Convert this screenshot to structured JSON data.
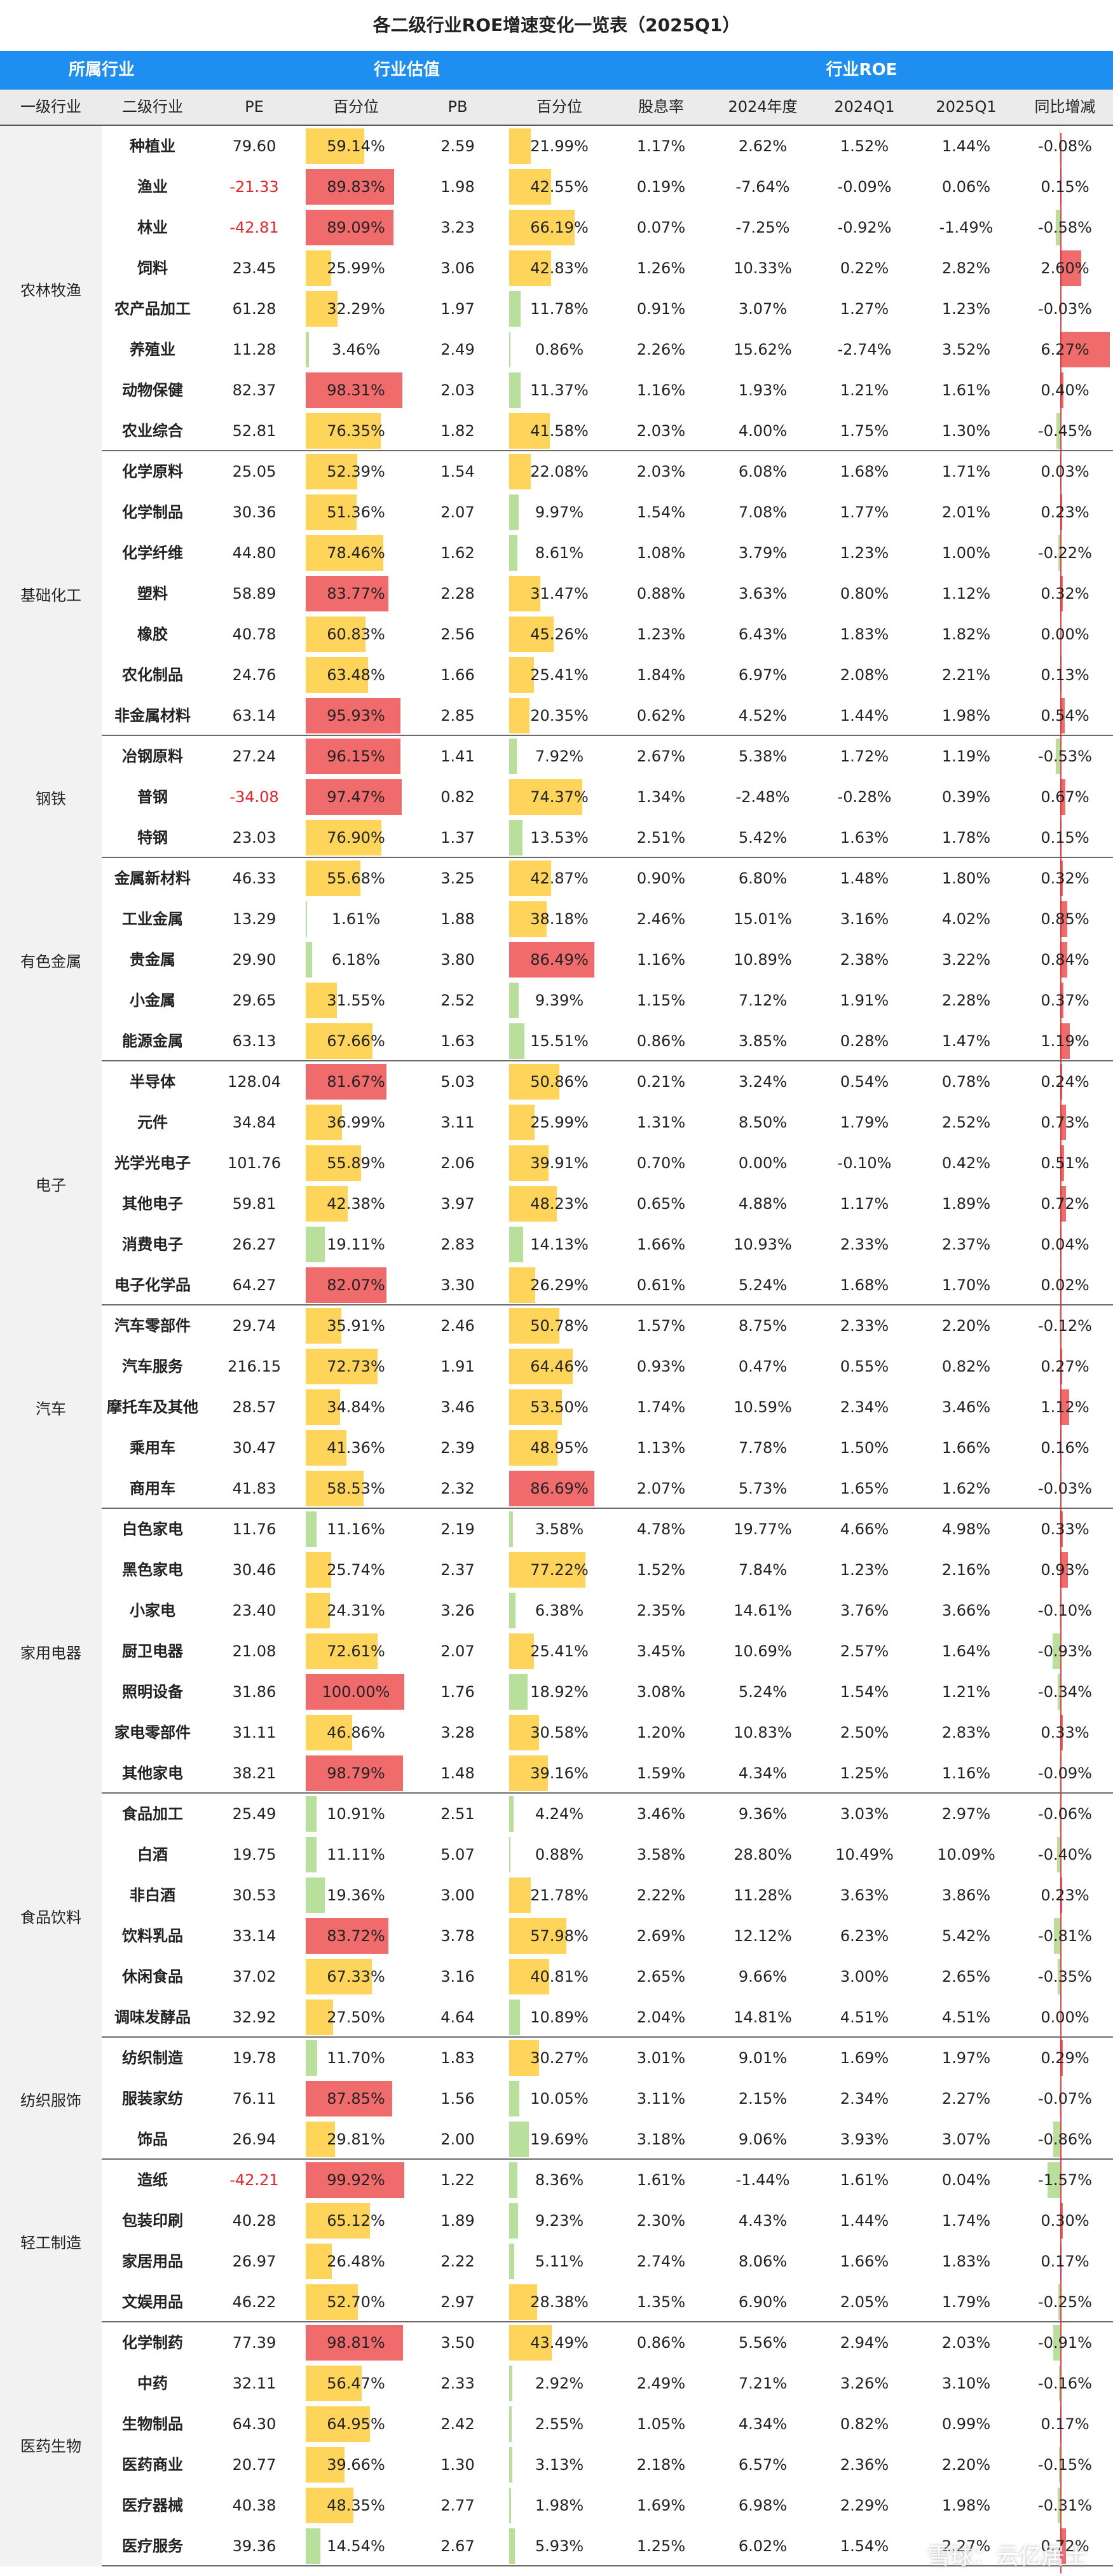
{
  "title": "各二级行业ROE增速变化一览表（2025Q1）",
  "header_groups": [
    "所属行业",
    "行业估值",
    "行业ROE"
  ],
  "columns": [
    "一级行业",
    "二级行业",
    "PE",
    "百分位",
    "PB",
    "百分位",
    "股息率",
    "2024年度",
    "2024Q1",
    "2025Q1",
    "同比增减"
  ],
  "watermark": "雪球：云亿居士",
  "colors": {
    "header_blue": "#1f8ef1",
    "bar_red": "#f06b6c",
    "bar_yellow": "#ffd45b",
    "bar_green": "#b8df9c",
    "negative_text": "#e8242b"
  },
  "groups": [
    {
      "l1": "农林牧渔",
      "rows": [
        {
          "l2": "种植业",
          "pe": "79.60",
          "pe_pct": "59.14%",
          "pb": "2.59",
          "pb_pct": "21.99%",
          "div": "1.17%",
          "y2024": "2.62%",
          "q2024": "1.52%",
          "q2025": "1.44%",
          "yoy": "-0.08%"
        },
        {
          "l2": "渔业",
          "pe": "-21.33",
          "pe_pct": "89.83%",
          "pb": "1.98",
          "pb_pct": "42.55%",
          "div": "0.19%",
          "y2024": "-7.64%",
          "q2024": "-0.09%",
          "q2025": "0.06%",
          "yoy": "0.15%"
        },
        {
          "l2": "林业",
          "pe": "-42.81",
          "pe_pct": "89.09%",
          "pb": "3.23",
          "pb_pct": "66.19%",
          "div": "0.07%",
          "y2024": "-7.25%",
          "q2024": "-0.92%",
          "q2025": "-1.49%",
          "yoy": "-0.58%"
        },
        {
          "l2": "饲料",
          "pe": "23.45",
          "pe_pct": "25.99%",
          "pb": "3.06",
          "pb_pct": "42.83%",
          "div": "1.26%",
          "y2024": "10.33%",
          "q2024": "0.22%",
          "q2025": "2.82%",
          "yoy": "2.60%"
        },
        {
          "l2": "农产品加工",
          "pe": "61.28",
          "pe_pct": "32.29%",
          "pb": "1.97",
          "pb_pct": "11.78%",
          "div": "0.91%",
          "y2024": "3.07%",
          "q2024": "1.27%",
          "q2025": "1.23%",
          "yoy": "-0.03%"
        },
        {
          "l2": "养殖业",
          "pe": "11.28",
          "pe_pct": "3.46%",
          "pb": "2.49",
          "pb_pct": "0.86%",
          "div": "2.26%",
          "y2024": "15.62%",
          "q2024": "-2.74%",
          "q2025": "3.52%",
          "yoy": "6.27%"
        },
        {
          "l2": "动物保健",
          "pe": "82.37",
          "pe_pct": "98.31%",
          "pb": "2.03",
          "pb_pct": "11.37%",
          "div": "1.16%",
          "y2024": "1.93%",
          "q2024": "1.21%",
          "q2025": "1.61%",
          "yoy": "0.40%"
        },
        {
          "l2": "农业综合",
          "pe": "52.81",
          "pe_pct": "76.35%",
          "pb": "1.82",
          "pb_pct": "41.58%",
          "div": "2.03%",
          "y2024": "4.00%",
          "q2024": "1.75%",
          "q2025": "1.30%",
          "yoy": "-0.45%"
        }
      ]
    },
    {
      "l1": "基础化工",
      "rows": [
        {
          "l2": "化学原料",
          "pe": "25.05",
          "pe_pct": "52.39%",
          "pb": "1.54",
          "pb_pct": "22.08%",
          "div": "2.03%",
          "y2024": "6.08%",
          "q2024": "1.68%",
          "q2025": "1.71%",
          "yoy": "0.03%"
        },
        {
          "l2": "化学制品",
          "pe": "30.36",
          "pe_pct": "51.36%",
          "pb": "2.07",
          "pb_pct": "9.97%",
          "div": "1.54%",
          "y2024": "7.08%",
          "q2024": "1.77%",
          "q2025": "2.01%",
          "yoy": "0.23%"
        },
        {
          "l2": "化学纤维",
          "pe": "44.80",
          "pe_pct": "78.46%",
          "pb": "1.62",
          "pb_pct": "8.61%",
          "div": "1.08%",
          "y2024": "3.79%",
          "q2024": "1.23%",
          "q2025": "1.00%",
          "yoy": "-0.22%"
        },
        {
          "l2": "塑料",
          "pe": "58.89",
          "pe_pct": "83.77%",
          "pb": "2.28",
          "pb_pct": "31.47%",
          "div": "0.88%",
          "y2024": "3.63%",
          "q2024": "0.80%",
          "q2025": "1.12%",
          "yoy": "0.32%"
        },
        {
          "l2": "橡胶",
          "pe": "40.78",
          "pe_pct": "60.83%",
          "pb": "2.56",
          "pb_pct": "45.26%",
          "div": "1.23%",
          "y2024": "6.43%",
          "q2024": "1.83%",
          "q2025": "1.82%",
          "yoy": "0.00%"
        },
        {
          "l2": "农化制品",
          "pe": "24.76",
          "pe_pct": "63.48%",
          "pb": "1.66",
          "pb_pct": "25.41%",
          "div": "1.84%",
          "y2024": "6.97%",
          "q2024": "2.08%",
          "q2025": "2.21%",
          "yoy": "0.13%"
        },
        {
          "l2": "非金属材料",
          "pe": "63.14",
          "pe_pct": "95.93%",
          "pb": "2.85",
          "pb_pct": "20.35%",
          "div": "0.62%",
          "y2024": "4.52%",
          "q2024": "1.44%",
          "q2025": "1.98%",
          "yoy": "0.54%"
        }
      ]
    },
    {
      "l1": "钢铁",
      "rows": [
        {
          "l2": "冶钢原料",
          "pe": "27.24",
          "pe_pct": "96.15%",
          "pb": "1.41",
          "pb_pct": "7.92%",
          "div": "2.67%",
          "y2024": "5.38%",
          "q2024": "1.72%",
          "q2025": "1.19%",
          "yoy": "-0.53%"
        },
        {
          "l2": "普钢",
          "pe": "-34.08",
          "pe_pct": "97.47%",
          "pb": "0.82",
          "pb_pct": "74.37%",
          "div": "1.34%",
          "y2024": "-2.48%",
          "q2024": "-0.28%",
          "q2025": "0.39%",
          "yoy": "0.67%"
        },
        {
          "l2": "特钢",
          "pe": "23.03",
          "pe_pct": "76.90%",
          "pb": "1.37",
          "pb_pct": "13.53%",
          "div": "2.51%",
          "y2024": "5.42%",
          "q2024": "1.63%",
          "q2025": "1.78%",
          "yoy": "0.15%"
        }
      ]
    },
    {
      "l1": "有色金属",
      "rows": [
        {
          "l2": "金属新材料",
          "pe": "46.33",
          "pe_pct": "55.68%",
          "pb": "3.25",
          "pb_pct": "42.87%",
          "div": "0.90%",
          "y2024": "6.80%",
          "q2024": "1.48%",
          "q2025": "1.80%",
          "yoy": "0.32%"
        },
        {
          "l2": "工业金属",
          "pe": "13.29",
          "pe_pct": "1.61%",
          "pb": "1.88",
          "pb_pct": "38.18%",
          "div": "2.46%",
          "y2024": "15.01%",
          "q2024": "3.16%",
          "q2025": "4.02%",
          "yoy": "0.85%"
        },
        {
          "l2": "贵金属",
          "pe": "29.90",
          "pe_pct": "6.18%",
          "pb": "3.80",
          "pb_pct": "86.49%",
          "div": "1.16%",
          "y2024": "10.89%",
          "q2024": "2.38%",
          "q2025": "3.22%",
          "yoy": "0.84%"
        },
        {
          "l2": "小金属",
          "pe": "29.65",
          "pe_pct": "31.55%",
          "pb": "2.52",
          "pb_pct": "9.39%",
          "div": "1.15%",
          "y2024": "7.12%",
          "q2024": "1.91%",
          "q2025": "2.28%",
          "yoy": "0.37%"
        },
        {
          "l2": "能源金属",
          "pe": "63.13",
          "pe_pct": "67.66%",
          "pb": "1.63",
          "pb_pct": "15.51%",
          "div": "0.86%",
          "y2024": "3.85%",
          "q2024": "0.28%",
          "q2025": "1.47%",
          "yoy": "1.19%"
        }
      ]
    },
    {
      "l1": "电子",
      "rows": [
        {
          "l2": "半导体",
          "pe": "128.04",
          "pe_pct": "81.67%",
          "pb": "5.03",
          "pb_pct": "50.86%",
          "div": "0.21%",
          "y2024": "3.24%",
          "q2024": "0.54%",
          "q2025": "0.78%",
          "yoy": "0.24%"
        },
        {
          "l2": "元件",
          "pe": "34.84",
          "pe_pct": "36.99%",
          "pb": "3.11",
          "pb_pct": "25.99%",
          "div": "1.31%",
          "y2024": "8.50%",
          "q2024": "1.79%",
          "q2025": "2.52%",
          "yoy": "0.73%"
        },
        {
          "l2": "光学光电子",
          "pe": "101.76",
          "pe_pct": "55.89%",
          "pb": "2.06",
          "pb_pct": "39.91%",
          "div": "0.70%",
          "y2024": "0.00%",
          "q2024": "-0.10%",
          "q2025": "0.42%",
          "yoy": "0.51%"
        },
        {
          "l2": "其他电子",
          "pe": "59.81",
          "pe_pct": "42.38%",
          "pb": "3.97",
          "pb_pct": "48.23%",
          "div": "0.65%",
          "y2024": "4.88%",
          "q2024": "1.17%",
          "q2025": "1.89%",
          "yoy": "0.72%"
        },
        {
          "l2": "消费电子",
          "pe": "26.27",
          "pe_pct": "19.11%",
          "pb": "2.83",
          "pb_pct": "14.13%",
          "div": "1.66%",
          "y2024": "10.93%",
          "q2024": "2.33%",
          "q2025": "2.37%",
          "yoy": "0.04%"
        },
        {
          "l2": "电子化学品",
          "pe": "64.27",
          "pe_pct": "82.07%",
          "pb": "3.30",
          "pb_pct": "26.29%",
          "div": "0.61%",
          "y2024": "5.24%",
          "q2024": "1.68%",
          "q2025": "1.70%",
          "yoy": "0.02%"
        }
      ]
    },
    {
      "l1": "汽车",
      "rows": [
        {
          "l2": "汽车零部件",
          "pe": "29.74",
          "pe_pct": "35.91%",
          "pb": "2.46",
          "pb_pct": "50.78%",
          "div": "1.57%",
          "y2024": "8.75%",
          "q2024": "2.33%",
          "q2025": "2.20%",
          "yoy": "-0.12%"
        },
        {
          "l2": "汽车服务",
          "pe": "216.15",
          "pe_pct": "72.73%",
          "pb": "1.91",
          "pb_pct": "64.46%",
          "div": "0.93%",
          "y2024": "0.47%",
          "q2024": "0.55%",
          "q2025": "0.82%",
          "yoy": "0.27%"
        },
        {
          "l2": "摩托车及其他",
          "pe": "28.57",
          "pe_pct": "34.84%",
          "pb": "3.46",
          "pb_pct": "53.50%",
          "div": "1.74%",
          "y2024": "10.59%",
          "q2024": "2.34%",
          "q2025": "3.46%",
          "yoy": "1.12%"
        },
        {
          "l2": "乘用车",
          "pe": "30.47",
          "pe_pct": "41.36%",
          "pb": "2.39",
          "pb_pct": "48.95%",
          "div": "1.13%",
          "y2024": "7.78%",
          "q2024": "1.50%",
          "q2025": "1.66%",
          "yoy": "0.16%"
        },
        {
          "l2": "商用车",
          "pe": "41.83",
          "pe_pct": "58.53%",
          "pb": "2.32",
          "pb_pct": "86.69%",
          "div": "2.07%",
          "y2024": "5.73%",
          "q2024": "1.65%",
          "q2025": "1.62%",
          "yoy": "-0.03%"
        }
      ]
    },
    {
      "l1": "家用电器",
      "rows": [
        {
          "l2": "白色家电",
          "pe": "11.76",
          "pe_pct": "11.16%",
          "pb": "2.19",
          "pb_pct": "3.58%",
          "div": "4.78%",
          "y2024": "19.77%",
          "q2024": "4.66%",
          "q2025": "4.98%",
          "yoy": "0.33%"
        },
        {
          "l2": "黑色家电",
          "pe": "30.46",
          "pe_pct": "25.74%",
          "pb": "2.37",
          "pb_pct": "77.22%",
          "div": "1.52%",
          "y2024": "7.84%",
          "q2024": "1.23%",
          "q2025": "2.16%",
          "yoy": "0.93%"
        },
        {
          "l2": "小家电",
          "pe": "23.40",
          "pe_pct": "24.31%",
          "pb": "3.26",
          "pb_pct": "6.38%",
          "div": "2.35%",
          "y2024": "14.61%",
          "q2024": "3.76%",
          "q2025": "3.66%",
          "yoy": "-0.10%"
        },
        {
          "l2": "厨卫电器",
          "pe": "21.08",
          "pe_pct": "72.61%",
          "pb": "2.07",
          "pb_pct": "25.41%",
          "div": "3.45%",
          "y2024": "10.69%",
          "q2024": "2.57%",
          "q2025": "1.64%",
          "yoy": "-0.93%"
        },
        {
          "l2": "照明设备",
          "pe": "31.86",
          "pe_pct": "100.00%",
          "pb": "1.76",
          "pb_pct": "18.92%",
          "div": "3.08%",
          "y2024": "5.24%",
          "q2024": "1.54%",
          "q2025": "1.21%",
          "yoy": "-0.34%"
        },
        {
          "l2": "家电零部件",
          "pe": "31.11",
          "pe_pct": "46.86%",
          "pb": "3.28",
          "pb_pct": "30.58%",
          "div": "1.20%",
          "y2024": "10.83%",
          "q2024": "2.50%",
          "q2025": "2.83%",
          "yoy": "0.33%"
        },
        {
          "l2": "其他家电",
          "pe": "38.21",
          "pe_pct": "98.79%",
          "pb": "1.48",
          "pb_pct": "39.16%",
          "div": "1.59%",
          "y2024": "4.34%",
          "q2024": "1.25%",
          "q2025": "1.16%",
          "yoy": "-0.09%"
        }
      ]
    },
    {
      "l1": "食品饮料",
      "rows": [
        {
          "l2": "食品加工",
          "pe": "25.49",
          "pe_pct": "10.91%",
          "pb": "2.51",
          "pb_pct": "4.24%",
          "div": "3.46%",
          "y2024": "9.36%",
          "q2024": "3.03%",
          "q2025": "2.97%",
          "yoy": "-0.06%"
        },
        {
          "l2": "白酒",
          "pe": "19.75",
          "pe_pct": "11.11%",
          "pb": "5.07",
          "pb_pct": "0.88%",
          "div": "3.58%",
          "y2024": "28.80%",
          "q2024": "10.49%",
          "q2025": "10.09%",
          "yoy": "-0.40%"
        },
        {
          "l2": "非白酒",
          "pe": "30.53",
          "pe_pct": "19.36%",
          "pb": "3.00",
          "pb_pct": "21.78%",
          "div": "2.22%",
          "y2024": "11.28%",
          "q2024": "3.63%",
          "q2025": "3.86%",
          "yoy": "0.23%"
        },
        {
          "l2": "饮料乳品",
          "pe": "33.14",
          "pe_pct": "83.72%",
          "pb": "3.78",
          "pb_pct": "57.98%",
          "div": "2.69%",
          "y2024": "12.12%",
          "q2024": "6.23%",
          "q2025": "5.42%",
          "yoy": "-0.81%"
        },
        {
          "l2": "休闲食品",
          "pe": "37.02",
          "pe_pct": "67.33%",
          "pb": "3.16",
          "pb_pct": "40.81%",
          "div": "2.65%",
          "y2024": "9.66%",
          "q2024": "3.00%",
          "q2025": "2.65%",
          "yoy": "-0.35%"
        },
        {
          "l2": "调味发酵品",
          "pe": "32.92",
          "pe_pct": "27.50%",
          "pb": "4.64",
          "pb_pct": "10.89%",
          "div": "2.04%",
          "y2024": "14.81%",
          "q2024": "4.51%",
          "q2025": "4.51%",
          "yoy": "0.00%"
        }
      ]
    },
    {
      "l1": "纺织服饰",
      "rows": [
        {
          "l2": "纺织制造",
          "pe": "19.78",
          "pe_pct": "11.70%",
          "pb": "1.83",
          "pb_pct": "30.27%",
          "div": "3.01%",
          "y2024": "9.01%",
          "q2024": "1.69%",
          "q2025": "1.97%",
          "yoy": "0.29%"
        },
        {
          "l2": "服装家纺",
          "pe": "76.11",
          "pe_pct": "87.85%",
          "pb": "1.56",
          "pb_pct": "10.05%",
          "div": "3.11%",
          "y2024": "2.15%",
          "q2024": "2.34%",
          "q2025": "2.27%",
          "yoy": "-0.07%"
        },
        {
          "l2": "饰品",
          "pe": "26.94",
          "pe_pct": "29.81%",
          "pb": "2.00",
          "pb_pct": "19.69%",
          "div": "3.18%",
          "y2024": "9.06%",
          "q2024": "3.93%",
          "q2025": "3.07%",
          "yoy": "-0.86%"
        }
      ]
    },
    {
      "l1": "轻工制造",
      "rows": [
        {
          "l2": "造纸",
          "pe": "-42.21",
          "pe_pct": "99.92%",
          "pb": "1.22",
          "pb_pct": "8.36%",
          "div": "1.61%",
          "y2024": "-1.44%",
          "q2024": "1.61%",
          "q2025": "0.04%",
          "yoy": "-1.57%"
        },
        {
          "l2": "包装印刷",
          "pe": "40.28",
          "pe_pct": "65.12%",
          "pb": "1.89",
          "pb_pct": "9.23%",
          "div": "2.30%",
          "y2024": "4.43%",
          "q2024": "1.44%",
          "q2025": "1.74%",
          "yoy": "0.30%"
        },
        {
          "l2": "家居用品",
          "pe": "26.97",
          "pe_pct": "26.48%",
          "pb": "2.22",
          "pb_pct": "5.11%",
          "div": "2.74%",
          "y2024": "8.06%",
          "q2024": "1.66%",
          "q2025": "1.83%",
          "yoy": "0.17%"
        },
        {
          "l2": "文娱用品",
          "pe": "46.22",
          "pe_pct": "52.70%",
          "pb": "2.97",
          "pb_pct": "28.38%",
          "div": "1.35%",
          "y2024": "6.90%",
          "q2024": "2.05%",
          "q2025": "1.79%",
          "yoy": "-0.25%"
        }
      ]
    },
    {
      "l1": "医药生物",
      "rows": [
        {
          "l2": "化学制药",
          "pe": "77.39",
          "pe_pct": "98.81%",
          "pb": "3.50",
          "pb_pct": "43.49%",
          "div": "0.86%",
          "y2024": "5.56%",
          "q2024": "2.94%",
          "q2025": "2.03%",
          "yoy": "-0.91%"
        },
        {
          "l2": "中药",
          "pe": "32.11",
          "pe_pct": "56.47%",
          "pb": "2.33",
          "pb_pct": "2.92%",
          "div": "2.49%",
          "y2024": "7.21%",
          "q2024": "3.26%",
          "q2025": "3.10%",
          "yoy": "-0.16%"
        },
        {
          "l2": "生物制品",
          "pe": "64.30",
          "pe_pct": "64.95%",
          "pb": "2.42",
          "pb_pct": "2.55%",
          "div": "1.05%",
          "y2024": "4.34%",
          "q2024": "0.82%",
          "q2025": "0.99%",
          "yoy": "0.17%"
        },
        {
          "l2": "医药商业",
          "pe": "20.77",
          "pe_pct": "39.66%",
          "pb": "1.30",
          "pb_pct": "3.13%",
          "div": "2.18%",
          "y2024": "6.57%",
          "q2024": "2.36%",
          "q2025": "2.20%",
          "yoy": "-0.15%"
        },
        {
          "l2": "医疗器械",
          "pe": "40.38",
          "pe_pct": "48.35%",
          "pb": "2.77",
          "pb_pct": "1.98%",
          "div": "1.69%",
          "y2024": "6.98%",
          "q2024": "2.29%",
          "q2025": "1.98%",
          "yoy": "-0.31%"
        },
        {
          "l2": "医疗服务",
          "pe": "39.36",
          "pe_pct": "14.54%",
          "pb": "2.67",
          "pb_pct": "5.93%",
          "div": "1.25%",
          "y2024": "6.02%",
          "q2024": "1.54%",
          "q2025": "2.27%",
          "yoy": "0.72%"
        }
      ]
    }
  ]
}
